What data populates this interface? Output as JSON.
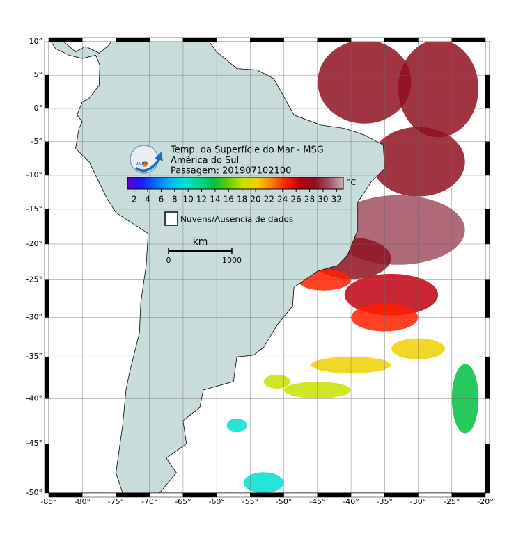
{
  "map": {
    "title_lines": [
      "Temp. da Superfície do Mar - MSG",
      "América do Sul",
      "Passagem: 201907102100"
    ],
    "logo_text": "INPE",
    "lonlim": [
      -85,
      -20
    ],
    "latlim": [
      -50,
      10
    ],
    "lon_ticks": [
      {
        "value": -85,
        "label": "-85°"
      },
      {
        "value": -80,
        "label": "-80°"
      },
      {
        "value": -75,
        "label": "-75°"
      },
      {
        "value": -70,
        "label": "-70°"
      },
      {
        "value": -65,
        "label": "-65°"
      },
      {
        "value": -60,
        "label": "-60°"
      },
      {
        "value": -55,
        "label": "-55°"
      },
      {
        "value": -50,
        "label": "-50°"
      },
      {
        "value": -45,
        "label": "-45°"
      },
      {
        "value": -40,
        "label": "-40°"
      },
      {
        "value": -35,
        "label": "-35°"
      },
      {
        "value": -30,
        "label": "-30°"
      },
      {
        "value": -25,
        "label": "-25°"
      },
      {
        "value": -20,
        "label": "-20°"
      }
    ],
    "lat_ticks": [
      {
        "value": 10,
        "label": "10°"
      },
      {
        "value": 5,
        "label": "5°"
      },
      {
        "value": 0,
        "label": "0°"
      },
      {
        "value": -5,
        "label": "-5°"
      },
      {
        "value": -10,
        "label": "-10°"
      },
      {
        "value": -15,
        "label": "-15°"
      },
      {
        "value": -20,
        "label": "-20°"
      },
      {
        "value": -25,
        "label": "-25°"
      },
      {
        "value": -30,
        "label": "-30°"
      },
      {
        "value": -35,
        "label": "-35°"
      },
      {
        "value": -40,
        "label": "-40°"
      },
      {
        "value": -45,
        "label": "-45°"
      },
      {
        "value": -50,
        "label": "-50°"
      }
    ],
    "grid": true,
    "colorbar": {
      "unit": "°C",
      "range": [
        1,
        33
      ],
      "ticks": [
        2,
        4,
        6,
        8,
        10,
        12,
        14,
        16,
        18,
        20,
        22,
        24,
        26,
        28,
        30,
        32
      ],
      "colors": [
        "#5a00c8",
        "#1a1aff",
        "#0070ff",
        "#00b8f0",
        "#00e0d0",
        "#00d890",
        "#00c040",
        "#60d000",
        "#c8e000",
        "#f0d000",
        "#ff8000",
        "#ff2000",
        "#c00010",
        "#901020",
        "#a05060",
        "#d0b0b8"
      ]
    },
    "legend": "Nuvens/Ausencia de dados",
    "scale_bar": {
      "unit": "km",
      "ticks": [
        0,
        1000
      ]
    }
  }
}
